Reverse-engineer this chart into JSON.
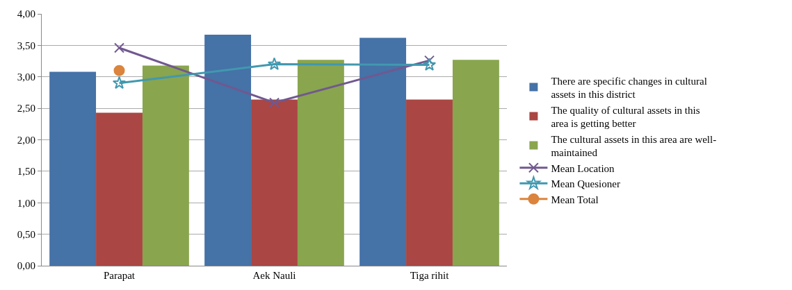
{
  "chart_data": {
    "type": "bar",
    "categories": [
      "Parapat",
      "Aek Nauli",
      "Tiga rihit"
    ],
    "series": [
      {
        "name": "There are specific changes in cultural assets in this district",
        "color": "#4572a7",
        "values": [
          3.08,
          3.67,
          3.62
        ]
      },
      {
        "name": "The quality of cultural assets in this area is getting better",
        "color": "#aa4643",
        "values": [
          2.43,
          2.64,
          2.64
        ]
      },
      {
        "name": "The cultural assets in this area are well-maintained",
        "color": "#89a54e",
        "values": [
          3.18,
          3.27,
          3.27
        ]
      },
      {
        "name": "Mean Location",
        "type": "line",
        "color": "#71588f",
        "marker": "cross",
        "values": [
          3.46,
          2.59,
          3.26
        ]
      },
      {
        "name": "Mean Quesioner",
        "type": "line",
        "color": "#4198af",
        "marker": "star",
        "values": [
          2.9,
          3.2,
          3.19
        ]
      },
      {
        "name": "Mean Total",
        "type": "line",
        "color": "#db843d",
        "marker": "circle",
        "values": [
          3.1,
          null,
          null
        ]
      }
    ],
    "ylim": [
      0,
      4
    ],
    "yticks": [
      {
        "value": 0,
        "label": "0,00"
      },
      {
        "value": 0.5,
        "label": "0,50"
      },
      {
        "value": 1,
        "label": "1,00"
      },
      {
        "value": 1.5,
        "label": "1,50"
      },
      {
        "value": 2,
        "label": "2,00"
      },
      {
        "value": 2.5,
        "label": "2,50"
      },
      {
        "value": 3,
        "label": "3,00"
      },
      {
        "value": 3.5,
        "label": "3,50"
      },
      {
        "value": 4,
        "label": "4,00"
      }
    ],
    "grid": "y",
    "legend": "right"
  }
}
